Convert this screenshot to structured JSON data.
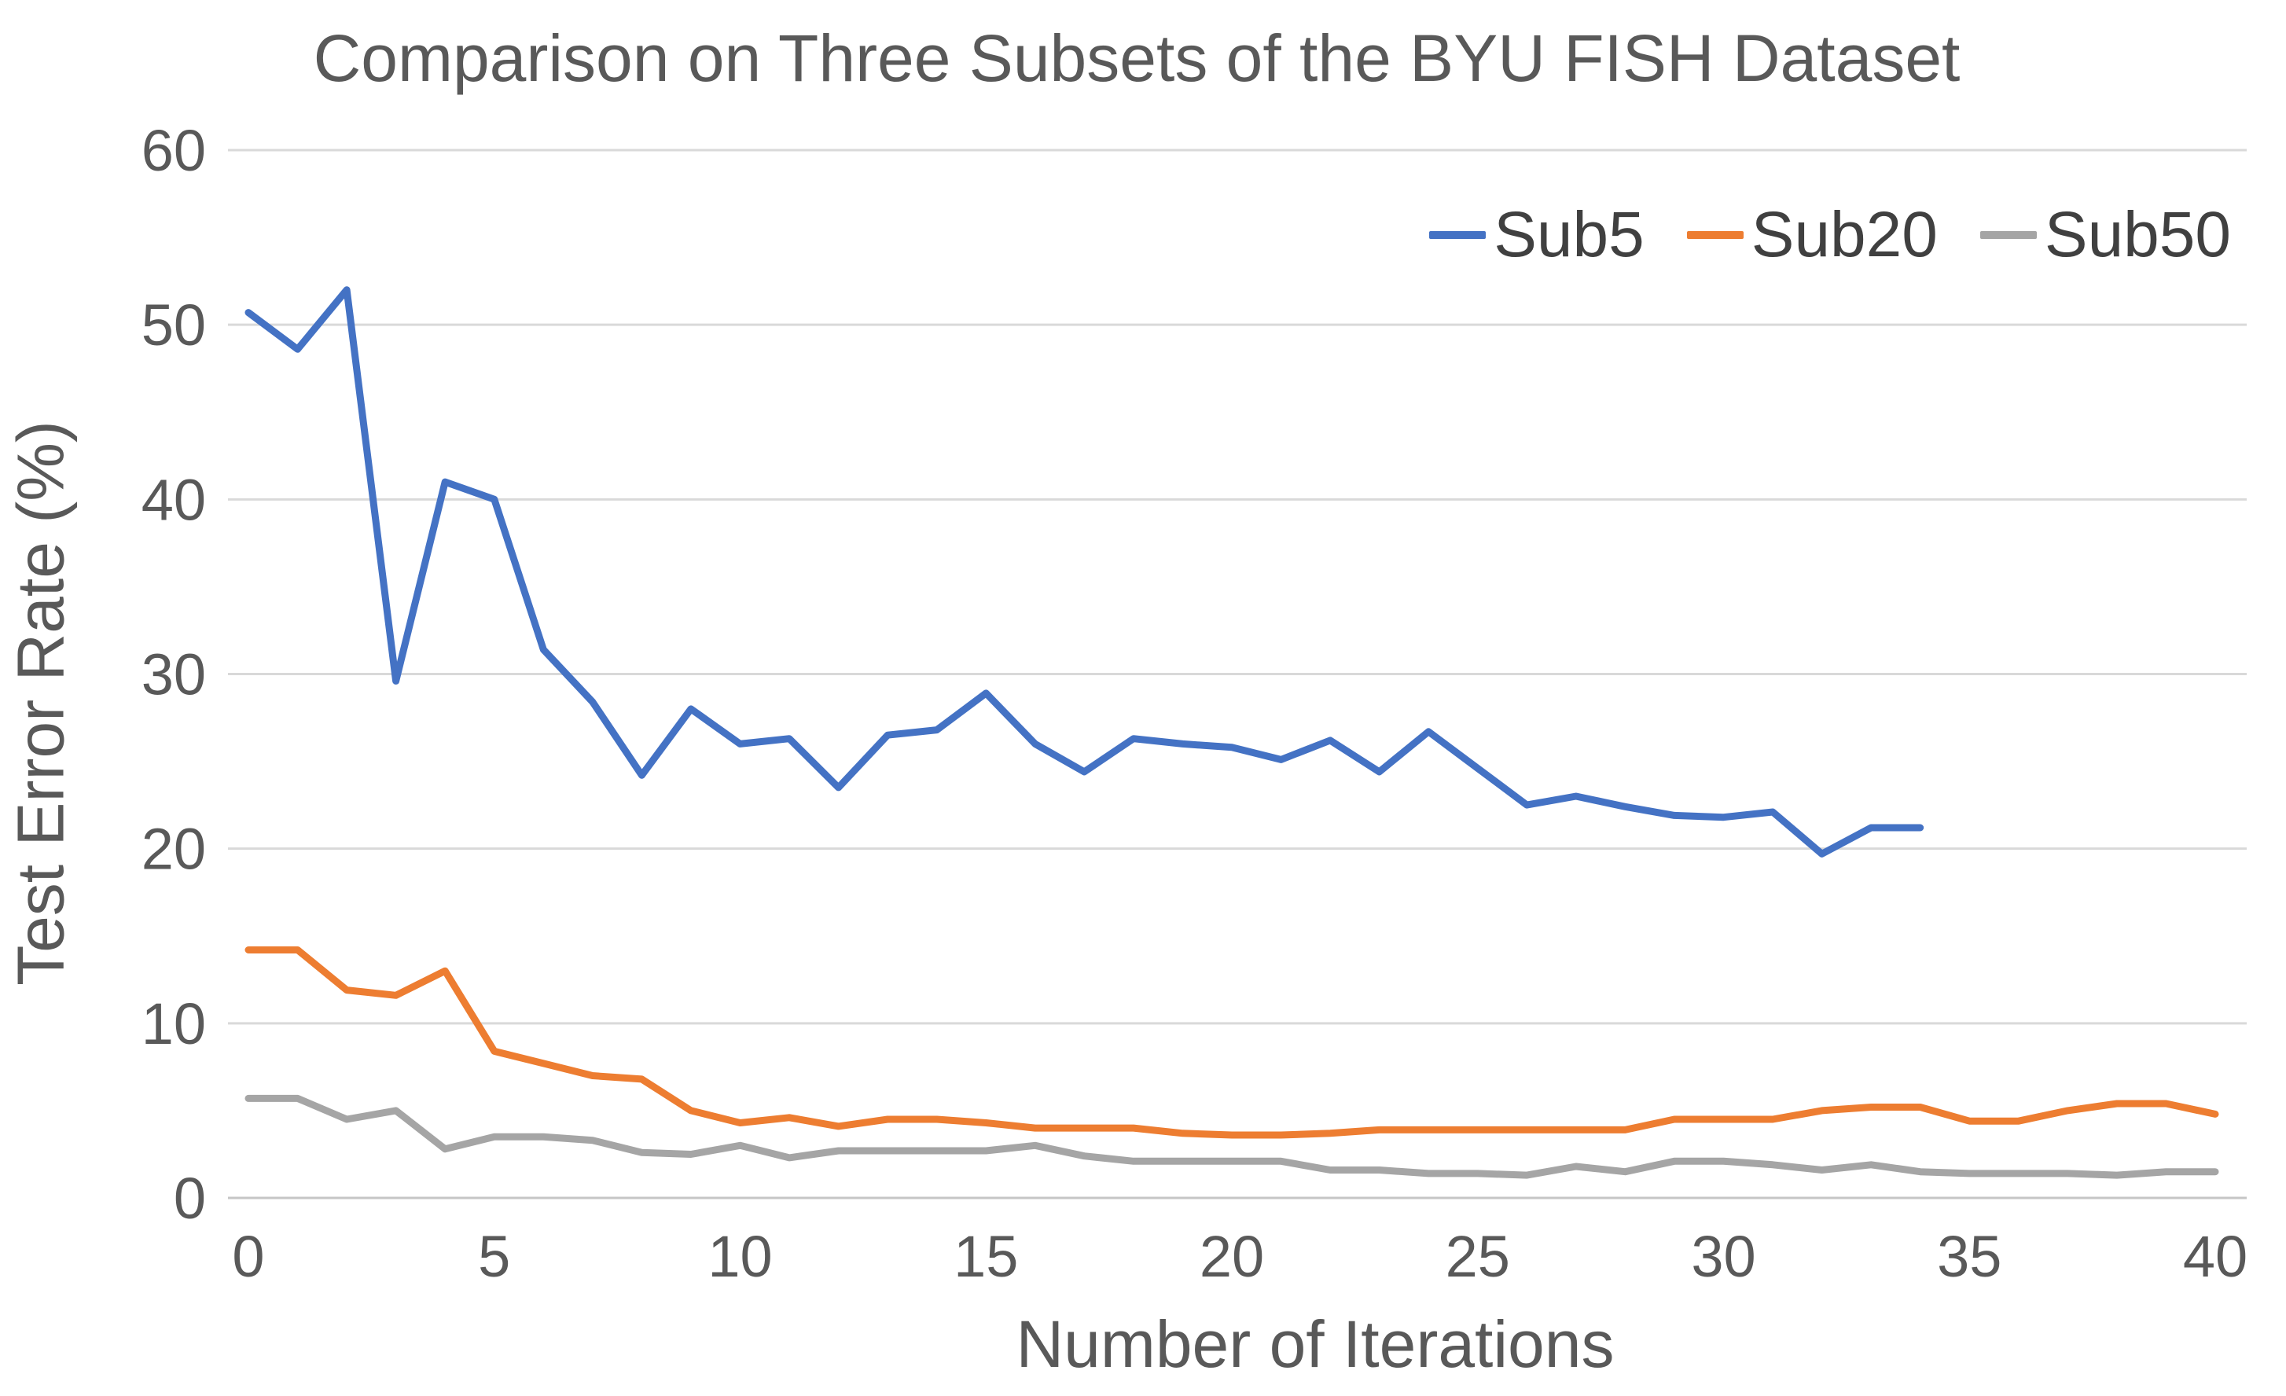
{
  "title": "Comparison on Three Subsets of the BYU FISH Dataset",
  "colors": {
    "sub5": "#4472C4",
    "sub20": "#ED7D31",
    "sub50": "#A5A5A5",
    "gridline": "#D9D9D9",
    "axis_line": "#C6C6C6",
    "text": "#595959"
  },
  "chart_data": {
    "type": "line",
    "title": "Comparison on Three Subsets of the BYU FISH Dataset",
    "xlabel": "Number of Iterations",
    "ylabel": "Test Error Rate (%)",
    "xlim": [
      0,
      40
    ],
    "ylim": [
      0,
      60
    ],
    "x_ticks": [
      0,
      5,
      10,
      15,
      20,
      25,
      30,
      35,
      40
    ],
    "y_ticks": [
      0,
      10,
      20,
      30,
      40,
      50,
      60
    ],
    "grid": "horizontal-only",
    "legend_position": "top-right",
    "series": [
      {
        "name": "Sub5",
        "color": "#4472C4",
        "x_start": 0,
        "x": [
          0,
          1,
          2,
          3,
          4,
          5,
          6,
          7,
          8,
          9,
          10,
          11,
          12,
          13,
          14,
          15,
          16,
          17,
          18,
          19,
          20,
          21,
          22,
          23,
          24,
          25,
          26,
          27,
          28,
          29,
          30,
          31,
          32,
          33,
          34
        ],
        "values": [
          50.7,
          48.6,
          52.0,
          29.6,
          41.0,
          40.0,
          31.4,
          28.4,
          24.2,
          28.0,
          26.0,
          26.3,
          23.5,
          26.5,
          26.8,
          28.9,
          26.0,
          24.4,
          26.3,
          26.0,
          25.8,
          25.1,
          26.2,
          24.4,
          26.7,
          24.6,
          22.5,
          23.0,
          22.4,
          21.9,
          21.8,
          22.1,
          19.7,
          21.2,
          21.2
        ]
      },
      {
        "name": "Sub20",
        "color": "#ED7D31",
        "x_start": 0,
        "x": [
          0,
          1,
          2,
          3,
          4,
          5,
          6,
          7,
          8,
          9,
          10,
          11,
          12,
          13,
          14,
          15,
          16,
          17,
          18,
          19,
          20,
          21,
          22,
          23,
          24,
          25,
          26,
          27,
          28,
          29,
          30,
          31,
          32,
          33,
          34,
          35,
          36,
          37,
          38,
          39,
          40
        ],
        "values": [
          14.2,
          14.2,
          11.9,
          11.6,
          13.0,
          8.4,
          7.7,
          7.0,
          6.8,
          5.0,
          4.3,
          4.6,
          4.1,
          4.5,
          4.5,
          4.3,
          4.0,
          4.0,
          4.0,
          3.7,
          3.6,
          3.6,
          3.7,
          3.9,
          3.9,
          3.9,
          3.9,
          3.9,
          3.9,
          4.5,
          4.5,
          4.5,
          5.0,
          5.2,
          5.2,
          4.4,
          4.4,
          5.0,
          5.4,
          5.4,
          4.8
        ]
      },
      {
        "name": "Sub50",
        "color": "#A5A5A5",
        "x_start": 0,
        "x": [
          0,
          1,
          2,
          3,
          4,
          5,
          6,
          7,
          8,
          9,
          10,
          11,
          12,
          13,
          14,
          15,
          16,
          17,
          18,
          19,
          20,
          21,
          22,
          23,
          24,
          25,
          26,
          27,
          28,
          29,
          30,
          31,
          32,
          33,
          34,
          35,
          36,
          37,
          38,
          39,
          40
        ],
        "values": [
          5.7,
          5.7,
          4.5,
          5.0,
          2.8,
          3.5,
          3.5,
          3.3,
          2.6,
          2.5,
          3.0,
          2.3,
          2.7,
          2.7,
          2.7,
          2.7,
          3.0,
          2.4,
          2.1,
          2.1,
          2.1,
          2.1,
          1.6,
          1.6,
          1.4,
          1.4,
          1.3,
          1.8,
          1.5,
          2.1,
          2.1,
          1.9,
          1.6,
          1.9,
          1.5,
          1.4,
          1.4,
          1.4,
          1.3,
          1.5,
          1.5
        ]
      }
    ]
  }
}
